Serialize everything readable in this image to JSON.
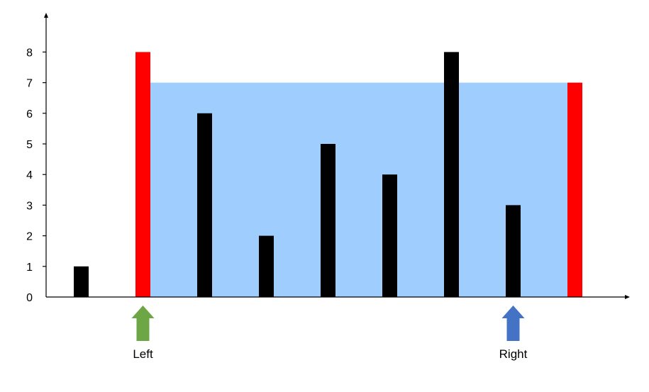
{
  "chart_data": {
    "type": "bar",
    "title": "",
    "xlabel": "",
    "ylabel": "",
    "ylim": [
      0,
      9
    ],
    "y_ticks": [
      "0",
      "1",
      "2",
      "3",
      "4",
      "5",
      "6",
      "7",
      "8"
    ],
    "grid": false,
    "legend": "none",
    "values": [
      1,
      8,
      6,
      2,
      5,
      4,
      8,
      3,
      7
    ],
    "highlighted_indices": [
      1,
      8
    ],
    "water_level": 7,
    "colors": {
      "bar": "#000000",
      "highlight": "#ff0000",
      "water": "#9fcdfd",
      "left_arrow": "#6da644",
      "right_arrow": "#4472c4",
      "axis": "#000000"
    },
    "pointers": [
      {
        "label": "Left",
        "index": 1,
        "icon": "arrow-up-icon",
        "color": "#6da644"
      },
      {
        "label": "Right",
        "index": 7,
        "icon": "arrow-up-icon",
        "color": "#4472c4"
      }
    ]
  }
}
